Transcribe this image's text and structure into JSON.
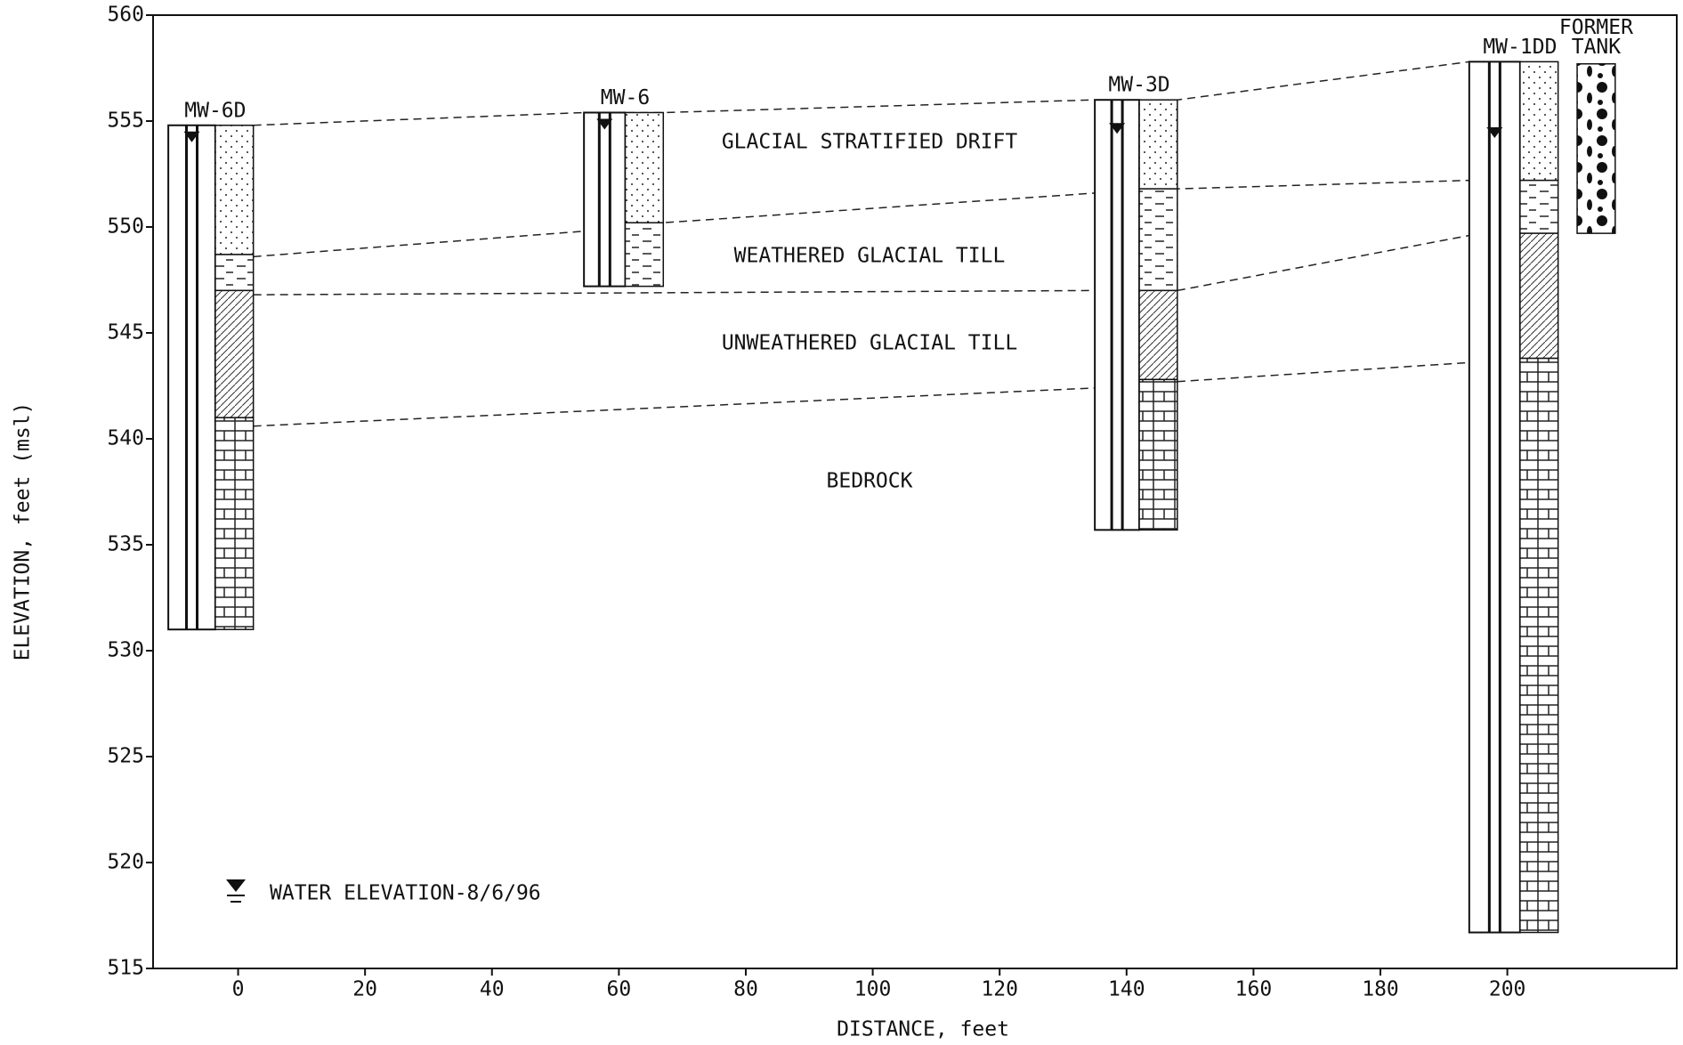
{
  "chart_data": {
    "type": "cross-section",
    "xlabel": "DISTANCE, feet",
    "ylabel": "ELEVATION, feet (msl)",
    "xlim": [
      -13.4,
      226.7
    ],
    "ylim": [
      515,
      560
    ],
    "xticks": [
      0,
      20,
      40,
      60,
      80,
      100,
      120,
      140,
      160,
      180,
      200
    ],
    "yticks": [
      515,
      520,
      525,
      530,
      535,
      540,
      545,
      550,
      555,
      560
    ],
    "units": [
      "GLACIAL STRATIFIED DRIFT",
      "WEATHERED GLACIAL TILL",
      "UNWEATHERED GLACIAL TILL",
      "BEDROCK"
    ],
    "wells": [
      {
        "name": "MW-6D",
        "x": [
          -11,
          2.4
        ],
        "top": 554.8,
        "water": 554,
        "layer_bases": [
          548.7,
          547,
          541,
          531
        ]
      },
      {
        "name": "MW-6",
        "x": [
          54.5,
          67
        ],
        "top": 555.4,
        "water": 554.6,
        "layer_bases": [
          550.2,
          547.2
        ]
      },
      {
        "name": "MW-3D",
        "x": [
          135,
          148
        ],
        "top": 556,
        "water": 554.4,
        "layer_bases": [
          551.8,
          547,
          542.8,
          535.7
        ]
      },
      {
        "name": "MW-1DD",
        "x": [
          194,
          208
        ],
        "top": 557.8,
        "water": 554.2,
        "layer_bases": [
          552.2,
          549.7,
          543.8,
          516.7
        ]
      }
    ],
    "tank": {
      "name_lines": [
        "FORMER",
        "TANK"
      ],
      "x": [
        211,
        217
      ],
      "top": 557.7,
      "bottom": 549.7
    },
    "contacts": [
      {
        "x": [
          2.4,
          54.5,
          67,
          135,
          148,
          194
        ],
        "y": [
          554.8,
          555.4,
          555.4,
          556,
          556,
          557.8
        ]
      },
      {
        "x": [
          2.4,
          54.5,
          67,
          135,
          148,
          194
        ],
        "y": [
          548.6,
          549.8,
          550.2,
          551.6,
          551.8,
          552.2
        ]
      },
      {
        "x": [
          2.4,
          135,
          null,
          148,
          194
        ],
        "y": [
          546.8,
          547,
          null,
          547,
          549.6
        ]
      },
      {
        "x": [
          2.4,
          135,
          null,
          148,
          194
        ],
        "y": [
          540.6,
          542.4,
          null,
          542.7,
          543.6
        ]
      }
    ],
    "legend": "WATER ELEVATION-8/6/96"
  }
}
